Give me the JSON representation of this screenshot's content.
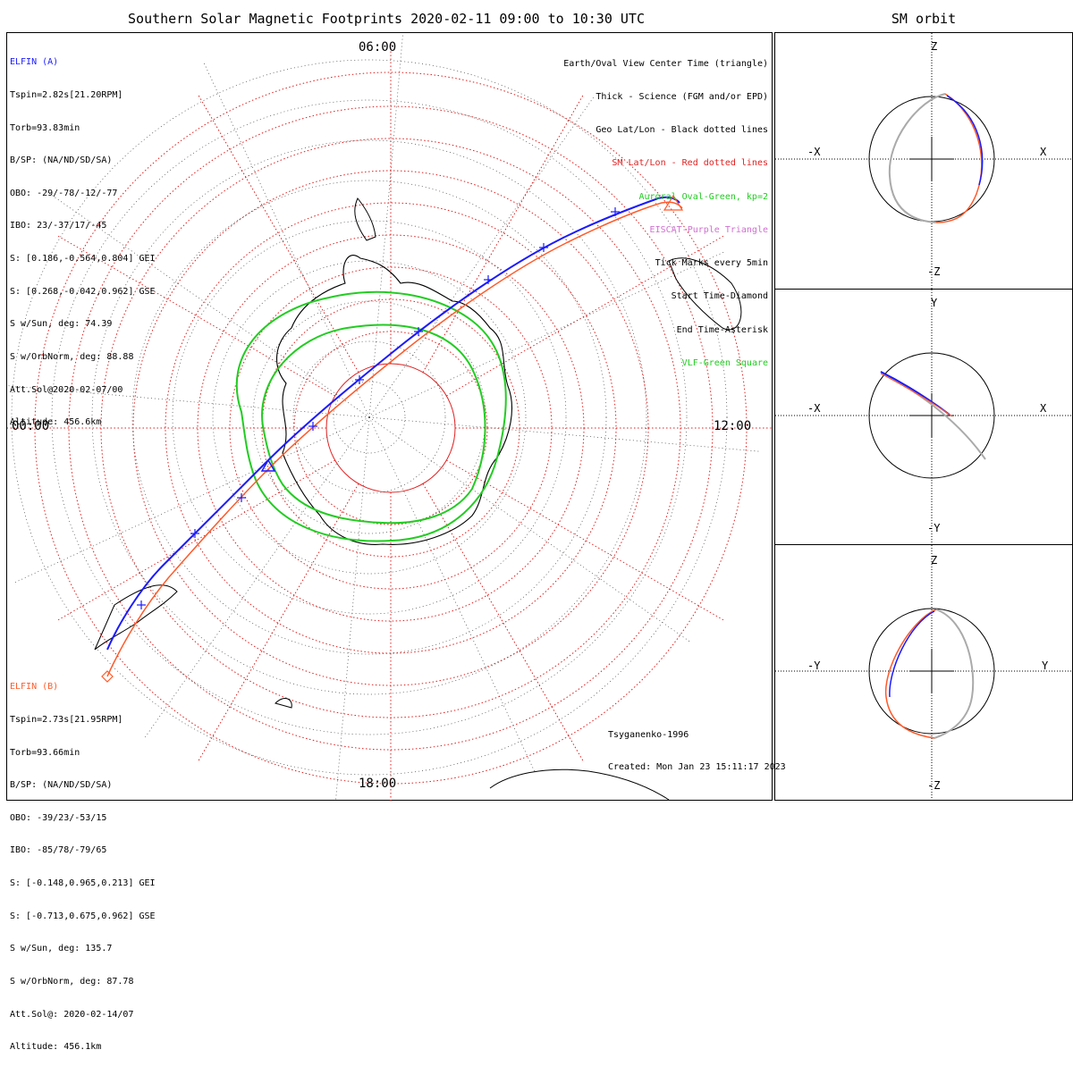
{
  "title": "Southern Solar Magnetic Footprints 2020-02-11 09:00 to 10:30 UTC",
  "sm_title": "SM orbit",
  "colors": {
    "elfin_a": "#1a1aff",
    "elfin_b": "#ff5a2a",
    "oval": "#22cc22",
    "grid": "#e02020",
    "geo": "#444444",
    "orbit_gray": "#aaaaaa"
  },
  "elfin_a": {
    "name": "ELFIN (A)",
    "lines": [
      "Tspin=2.82s[21.20RPM]",
      "Torb=93.83min",
      "B/SP: (NA/ND/SD/SA)",
      "OBO: -29/-78/-12/-77",
      "IBO: 23/-37/17/-45",
      "S: [0.186,-0.564,0.804] GEI",
      "S: [0.268,-0.042,0.962] GSE",
      "S w/Sun, deg: 74.39",
      "S w/OrbNorm, deg: 88.88",
      "Att.Sol@2020-02-07/00",
      "Altitude: 456.6km"
    ]
  },
  "elfin_b": {
    "name": "ELFIN (B)",
    "lines": [
      "Tspin=2.73s[21.95RPM]",
      "Torb=93.66min",
      "B/SP: (NA/ND/SD/SA)",
      "OBO: -39/23/-53/15",
      "IBO: -85/78/-79/65",
      "S: [-0.148,0.965,0.213] GEI",
      "S: [-0.713,0.675,0.962] GSE",
      "S w/Sun, deg: 135.7",
      "S w/OrbNorm, deg: 87.78",
      "Att.Sol@: 2020-02-14/07",
      "Altitude: 456.1km"
    ]
  },
  "legend": [
    {
      "text": "Earth/Oval View Center Time (triangle)",
      "color": "#000000"
    },
    {
      "text": "Thick - Science (FGM and/or EPD)",
      "color": "#000000"
    },
    {
      "text": "Geo Lat/Lon - Black dotted lines",
      "color": "#000000"
    },
    {
      "text": "SM Lat/Lon - Red dotted lines",
      "color": "#e02020"
    },
    {
      "text": "Auroral Oval-Green, kp=2",
      "color": "#22cc22"
    },
    {
      "text": "EISCAT-Purple Triangle",
      "color": "#d070d0"
    },
    {
      "text": "Tick Marks every 5min",
      "color": "#000000"
    },
    {
      "text": "Start Time-Diamond",
      "color": "#000000"
    },
    {
      "text": "End Time-Asterisk",
      "color": "#000000"
    },
    {
      "text": "VLF-Green Square",
      "color": "#22cc22"
    }
  ],
  "mlt_labels": {
    "top": "06:00",
    "left": "00:00",
    "right": "12:00",
    "bottom": "18:00"
  },
  "credit": {
    "model": "Tsyganenko-1996",
    "created": "Created: Mon Jan 23 15:11:17 2023"
  },
  "sm_panels": [
    {
      "top": "Z",
      "bottom": "-Z",
      "left": "-X",
      "right": "X"
    },
    {
      "top": "Y",
      "bottom": "-Y",
      "left": "-X",
      "right": "X"
    },
    {
      "top": "Z",
      "bottom": "-Z",
      "left": "-Y",
      "right": "Y"
    }
  ],
  "chart_data": {
    "type": "polar-map",
    "projection": "southern SM polar view",
    "mlt_labels": [
      "06:00",
      "12:00",
      "18:00",
      "00:00"
    ],
    "series": [
      {
        "name": "ELFIN (A)",
        "color": "#1a1aff"
      },
      {
        "name": "ELFIN (B)",
        "color": "#ff5a2a"
      },
      {
        "name": "Auroral Oval-Green, kp=2",
        "color": "#22cc22"
      }
    ]
  }
}
